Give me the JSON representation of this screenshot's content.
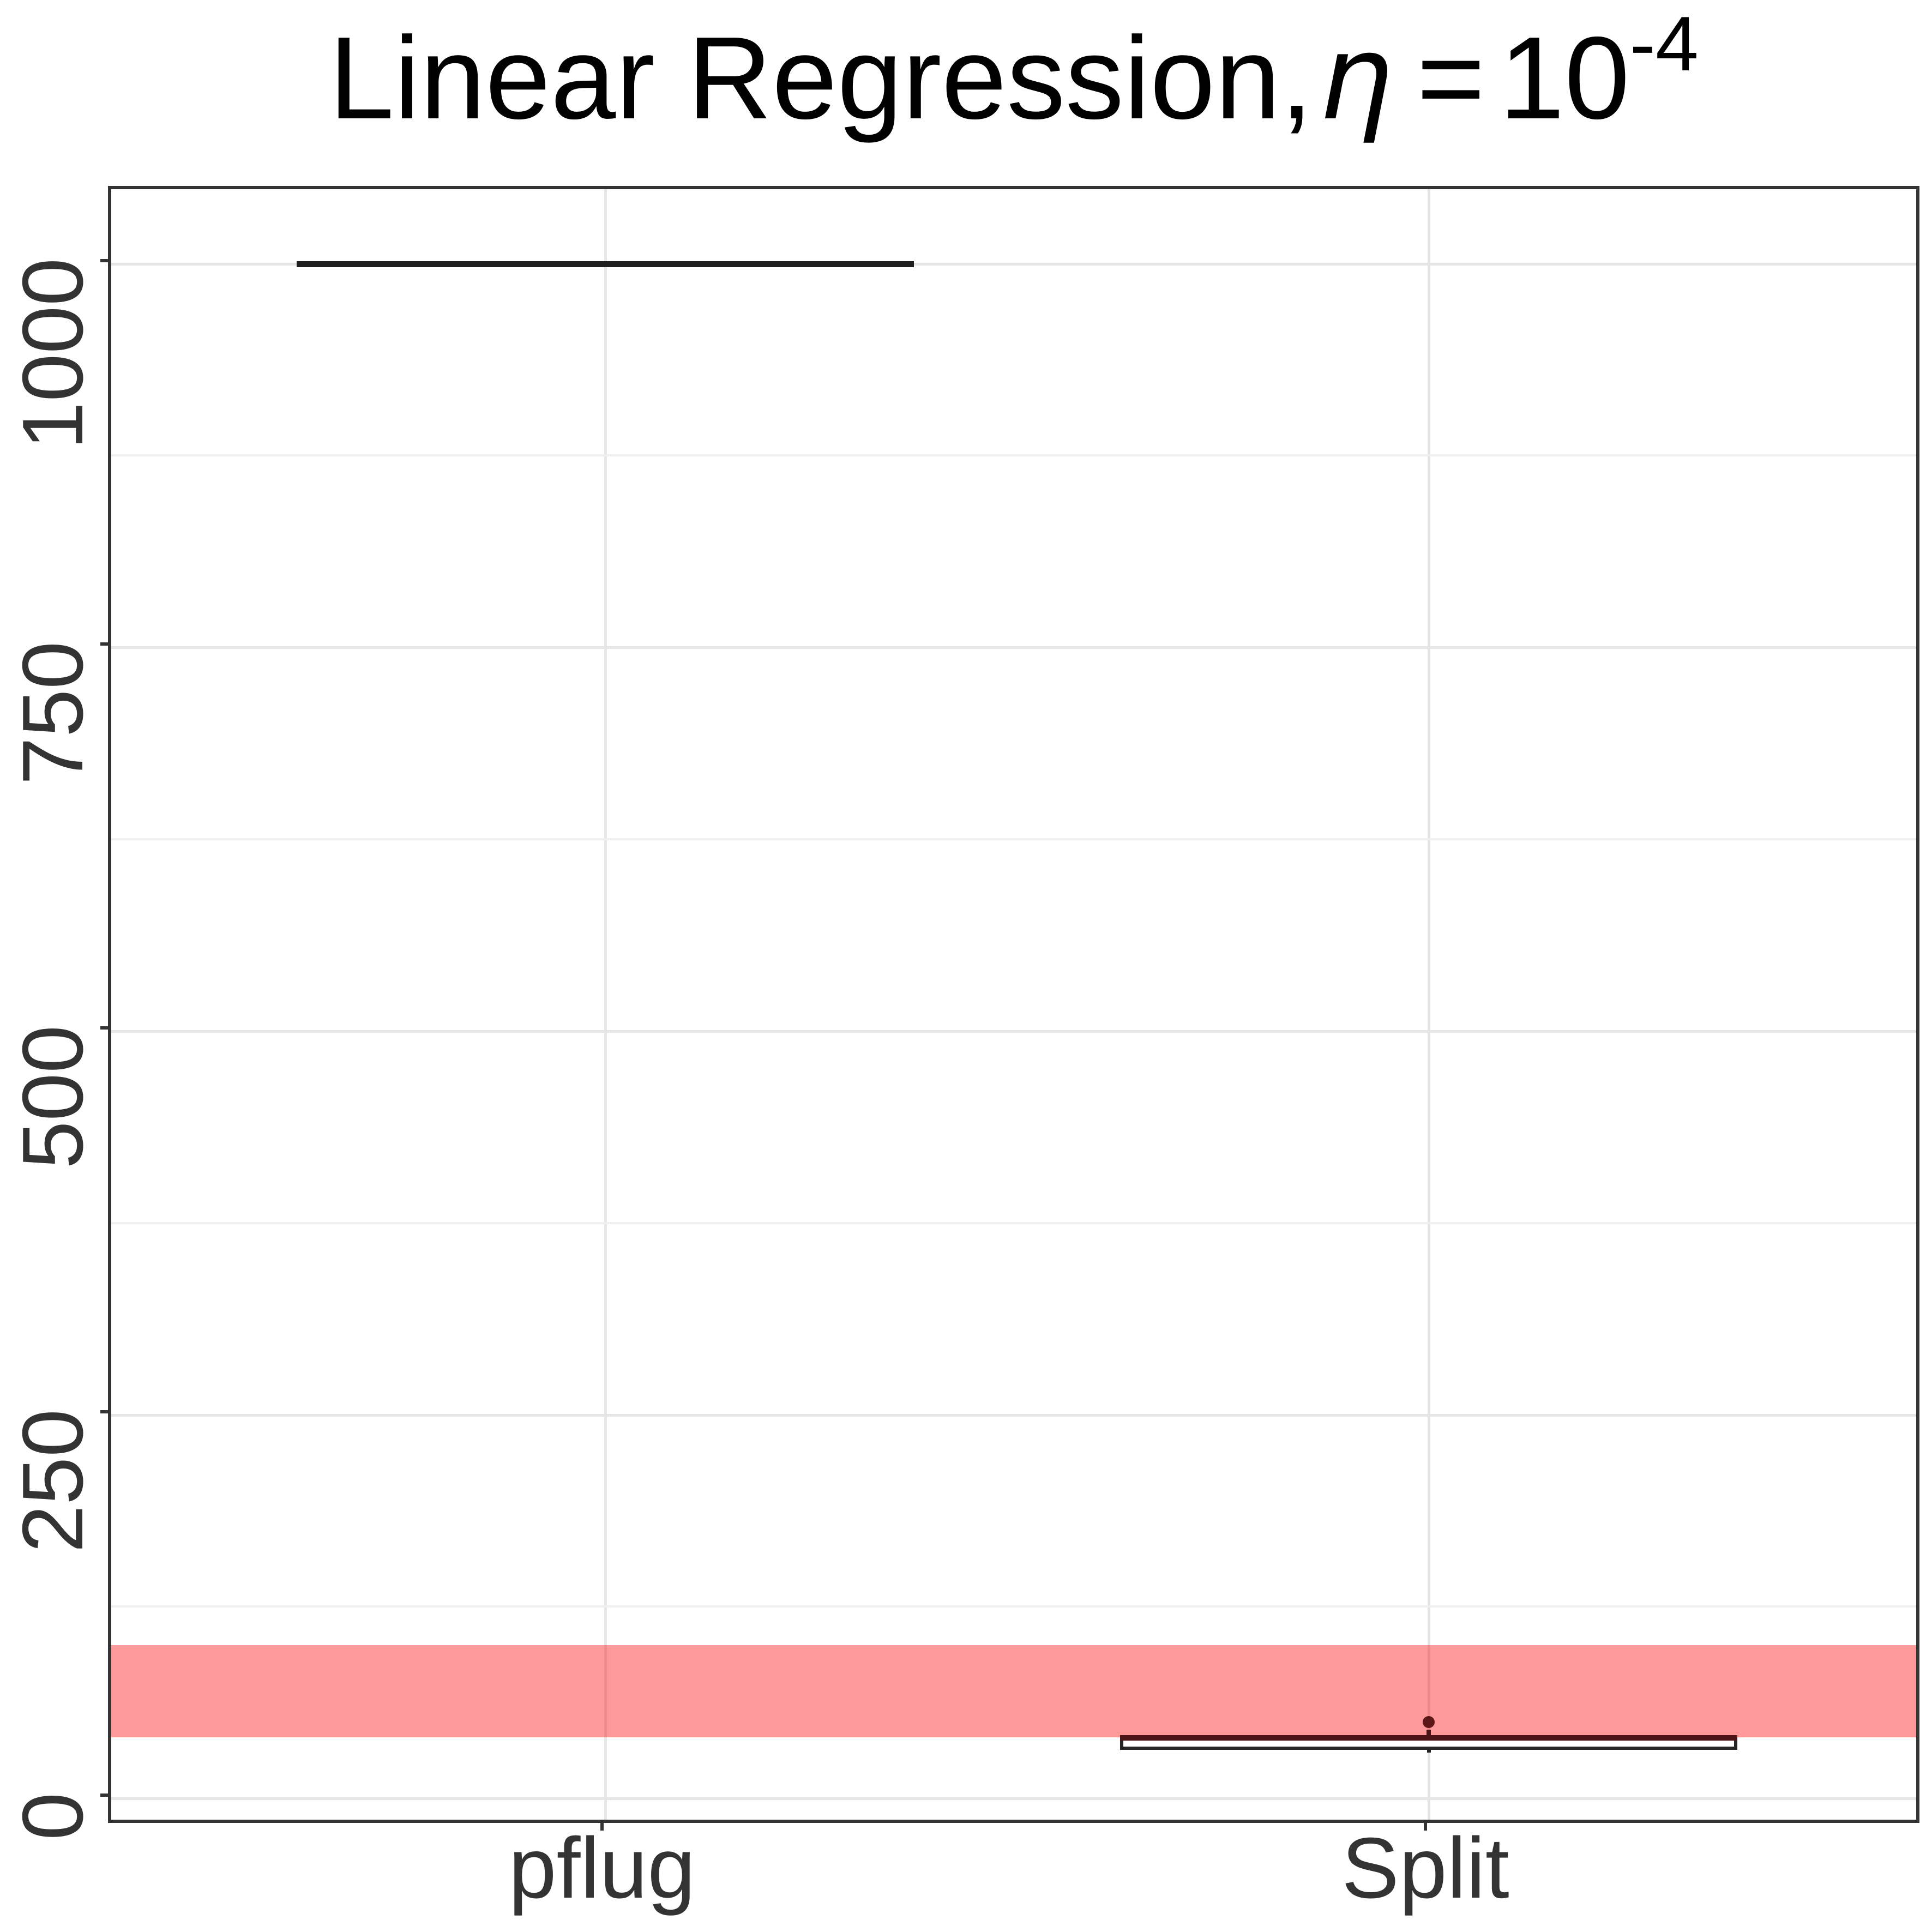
{
  "title": {
    "prefix": "Linear Regression,",
    "eta": "η",
    "equals": "=",
    "base": "10",
    "exponent": "-4",
    "full_text": "Linear Regression, η = 10^-4"
  },
  "y_axis": {
    "tick_labels": [
      "0",
      "250",
      "500",
      "750",
      "1000"
    ]
  },
  "x_axis": {
    "tick_labels": [
      "pflug",
      "Split"
    ]
  },
  "colors": {
    "title": "#000000",
    "axis_text": "#333333",
    "panel_border": "#333333",
    "grid_major": "#E6E6E6",
    "grid_minor": "#F0F0F0",
    "reference_band": "rgba(255,0,0,0.40)",
    "box_stroke": "#262626",
    "pflug_line": "#1F1F1F",
    "median_line": "#4A1416",
    "mean_dot": "#5D1719"
  },
  "chart_data": {
    "type": "boxplot",
    "title": "Linear Regression, η = 10^-4",
    "categories": [
      "pflug",
      "Split"
    ],
    "ylabel": "",
    "xlabel": "",
    "ylim": [
      -18,
      1048.5
    ],
    "yticks": [
      0,
      250,
      500,
      750,
      1000
    ],
    "grid": "major+minor",
    "legend": false,
    "series": [
      {
        "name": "pflug",
        "q1": 1000,
        "median": 1000,
        "q3": 1000,
        "whisker_low": 1000,
        "whisker_high": 1000,
        "mean_point": null,
        "note": "degenerate flat box - all runs hit 1000"
      },
      {
        "name": "Split",
        "q1": 34,
        "median": 39.5,
        "q3": 40,
        "whisker_low": 30,
        "whisker_high": 45,
        "mean_point": 50
      }
    ],
    "reference_band": {
      "ymin": 40,
      "ymax": 100
    }
  }
}
